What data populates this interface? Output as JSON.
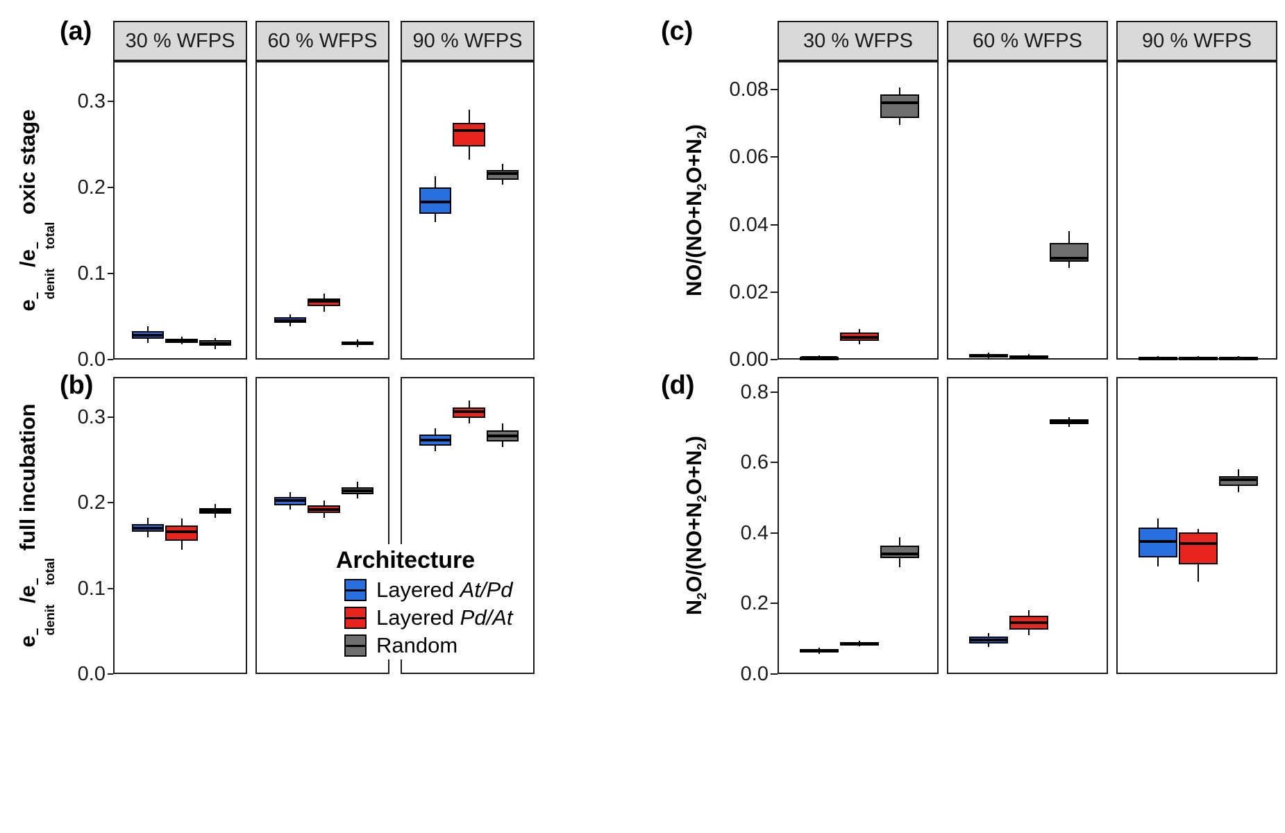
{
  "legend": {
    "title": "Architecture",
    "items": [
      {
        "label_prefix": "Layered ",
        "label_italic": "At/Pd",
        "series": "Layered At/Pd",
        "color": "#2a6fdf"
      },
      {
        "label_prefix": "Layered ",
        "label_italic": "Pd/At",
        "series": "Layered Pd/At",
        "color": "#e8251f"
      },
      {
        "label_prefix": "Random",
        "label_italic": "",
        "series": "Random",
        "color": "#6e6e6e"
      }
    ]
  },
  "chart_data": {
    "type": "boxplot",
    "grid": "off",
    "legend_position": "inside bottom-center of panel (b)",
    "series": [
      "Layered At/Pd",
      "Layered Pd/At",
      "Random"
    ],
    "series_colors": {
      "Layered At/Pd": "#2a6fdf",
      "Layered Pd/At": "#e8251f",
      "Random": "#6e6e6e"
    },
    "facet_titles": [
      "30 % WFPS",
      "60 % WFPS",
      "90 % WFPS"
    ],
    "panels": [
      {
        "id": "a",
        "label": "(a)",
        "group": "left",
        "row": "top",
        "show_strip": true,
        "ylabel_segments": [
          {
            "t": "e"
          },
          {
            "sup": "−",
            "sub": "denit"
          },
          {
            "t": "/e"
          },
          {
            "sup": "−",
            "sub": "total"
          },
          {
            "t": " oxic stage"
          }
        ],
        "ylim": [
          0,
          0.347
        ],
        "yticks": [
          {
            "v": 0.0,
            "label": "0.0"
          },
          {
            "v": 0.1,
            "label": "0.1"
          },
          {
            "v": 0.2,
            "label": "0.2"
          },
          {
            "v": 0.3,
            "label": "0.3"
          }
        ],
        "facets": [
          {
            "title": "30 % WFPS",
            "boxes": [
              {
                "series": "Layered At/Pd",
                "whisker_low": 0.021,
                "q1": 0.026,
                "median": 0.03,
                "q3": 0.035,
                "whisker_high": 0.04
              },
              {
                "series": "Layered Pd/At",
                "whisker_low": 0.019,
                "q1": 0.021,
                "median": 0.0235,
                "q3": 0.026,
                "whisker_high": 0.028
              },
              {
                "series": "Random",
                "whisker_low": 0.014,
                "q1": 0.0177,
                "median": 0.02,
                "q3": 0.0242,
                "whisker_high": 0.027
              }
            ]
          },
          {
            "title": "60 % WFPS",
            "boxes": [
              {
                "series": "Layered At/Pd",
                "whisker_low": 0.04,
                "q1": 0.044,
                "median": 0.047,
                "q3": 0.051,
                "whisker_high": 0.054
              },
              {
                "series": "Layered Pd/At",
                "whisker_low": 0.057,
                "q1": 0.064,
                "median": 0.069,
                "q3": 0.073,
                "whisker_high": 0.078
              },
              {
                "series": "Random",
                "whisker_low": 0.016,
                "q1": 0.0186,
                "median": 0.0205,
                "q3": 0.0226,
                "whisker_high": 0.025
              }
            ]
          },
          {
            "title": "90 % WFPS",
            "boxes": [
              {
                "series": "Layered At/Pd",
                "whisker_low": 0.161,
                "q1": 0.171,
                "median": 0.185,
                "q3": 0.202,
                "whisker_high": 0.215
              },
              {
                "series": "Layered Pd/At",
                "whisker_low": 0.234,
                "q1": 0.249,
                "median": 0.268,
                "q3": 0.277,
                "whisker_high": 0.292
              },
              {
                "series": "Random",
                "whisker_low": 0.205,
                "q1": 0.211,
                "median": 0.218,
                "q3": 0.222,
                "whisker_high": 0.229
              }
            ]
          }
        ]
      },
      {
        "id": "b",
        "label": "(b)",
        "group": "left",
        "row": "bottom",
        "show_strip": false,
        "ylabel_segments": [
          {
            "t": "e"
          },
          {
            "sup": "−",
            "sub": "denit"
          },
          {
            "t": "/e"
          },
          {
            "sup": "−",
            "sub": "total"
          },
          {
            "t": " full incubation"
          }
        ],
        "ylim": [
          0,
          0.347
        ],
        "yticks": [
          {
            "v": 0.0,
            "label": "0.0"
          },
          {
            "v": 0.1,
            "label": "0.1"
          },
          {
            "v": 0.2,
            "label": "0.2"
          },
          {
            "v": 0.3,
            "label": "0.3"
          }
        ],
        "facets": [
          {
            "boxes": [
              {
                "series": "Layered At/Pd",
                "whisker_low": 0.161,
                "q1": 0.168,
                "median": 0.172,
                "q3": 0.177,
                "whisker_high": 0.184
              },
              {
                "series": "Layered Pd/At",
                "whisker_low": 0.147,
                "q1": 0.157,
                "median": 0.168,
                "q3": 0.175,
                "whisker_high": 0.183
              },
              {
                "series": "Random",
                "whisker_low": 0.184,
                "q1": 0.189,
                "median": 0.192,
                "q3": 0.195,
                "whisker_high": 0.2
              }
            ]
          },
          {
            "boxes": [
              {
                "series": "Layered At/Pd",
                "whisker_low": 0.194,
                "q1": 0.199,
                "median": 0.204,
                "q3": 0.208,
                "whisker_high": 0.214
              },
              {
                "series": "Layered Pd/At",
                "whisker_low": 0.184,
                "q1": 0.19,
                "median": 0.194,
                "q3": 0.199,
                "whisker_high": 0.204
              },
              {
                "series": "Random",
                "whisker_low": 0.207,
                "q1": 0.212,
                "median": 0.216,
                "q3": 0.22,
                "whisker_high": 0.226
              }
            ]
          },
          {
            "boxes": [
              {
                "series": "Layered At/Pd",
                "whisker_low": 0.262,
                "q1": 0.268,
                "median": 0.275,
                "q3": 0.281,
                "whisker_high": 0.289
              },
              {
                "series": "Layered Pd/At",
                "whisker_low": 0.294,
                "q1": 0.301,
                "median": 0.308,
                "q3": 0.313,
                "whisker_high": 0.321
              },
              {
                "series": "Random",
                "whisker_low": 0.267,
                "q1": 0.273,
                "median": 0.28,
                "q3": 0.286,
                "whisker_high": 0.294
              }
            ]
          }
        ]
      },
      {
        "id": "c",
        "label": "(c)",
        "group": "right",
        "row": "top",
        "show_strip": true,
        "ylabel_segments": [
          {
            "t": "NO/(NO+N"
          },
          {
            "sub": "2"
          },
          {
            "t": "O+N"
          },
          {
            "sub": "2"
          },
          {
            "t": ")"
          }
        ],
        "ylim": [
          0,
          0.0885
        ],
        "yticks": [
          {
            "v": 0.0,
            "label": "0.00"
          },
          {
            "v": 0.02,
            "label": "0.02"
          },
          {
            "v": 0.04,
            "label": "0.04"
          },
          {
            "v": 0.06,
            "label": "0.06"
          },
          {
            "v": 0.08,
            "label": "0.08"
          }
        ],
        "facets": [
          {
            "title": "30 % WFPS",
            "boxes": [
              {
                "series": "Layered At/Pd",
                "whisker_low": 0.0005,
                "q1": 0.0008,
                "median": 0.001,
                "q3": 0.0013,
                "whisker_high": 0.0016
              },
              {
                "series": "Layered Pd/At",
                "whisker_low": 0.005,
                "q1": 0.006,
                "median": 0.007,
                "q3": 0.0085,
                "whisker_high": 0.0095
              },
              {
                "series": "Random",
                "whisker_low": 0.07,
                "q1": 0.072,
                "median": 0.0765,
                "q3": 0.079,
                "whisker_high": 0.081
              }
            ]
          },
          {
            "title": "60 % WFPS",
            "boxes": [
              {
                "series": "Layered At/Pd",
                "whisker_low": 0.0008,
                "q1": 0.0012,
                "median": 0.0016,
                "q3": 0.002,
                "whisker_high": 0.0024
              },
              {
                "series": "Layered Pd/At",
                "whisker_low": 0.0006,
                "q1": 0.0009,
                "median": 0.0013,
                "q3": 0.0017,
                "whisker_high": 0.002
              },
              {
                "series": "Random",
                "whisker_low": 0.0276,
                "q1": 0.0295,
                "median": 0.0305,
                "q3": 0.035,
                "whisker_high": 0.0385
              }
            ]
          },
          {
            "title": "90 % WFPS",
            "boxes": [
              {
                "series": "Layered At/Pd",
                "whisker_low": 0.0004,
                "q1": 0.0006,
                "median": 0.0009,
                "q3": 0.0012,
                "whisker_high": 0.0015
              },
              {
                "series": "Layered Pd/At",
                "whisker_low": 0.0004,
                "q1": 0.0006,
                "median": 0.0009,
                "q3": 0.0012,
                "whisker_high": 0.0015
              },
              {
                "series": "Random",
                "whisker_low": 0.0004,
                "q1": 0.0006,
                "median": 0.0009,
                "q3": 0.0012,
                "whisker_high": 0.0015
              }
            ]
          }
        ]
      },
      {
        "id": "d",
        "label": "(d)",
        "group": "right",
        "row": "bottom",
        "show_strip": false,
        "ylabel_segments": [
          {
            "t": "N"
          },
          {
            "sub": "2"
          },
          {
            "t": "O/(NO+N"
          },
          {
            "sub": "2"
          },
          {
            "t": "O+N"
          },
          {
            "sub": "2"
          },
          {
            "t": ")"
          }
        ],
        "ylim": [
          0,
          0.843
        ],
        "yticks": [
          {
            "v": 0.0,
            "label": "0.0"
          },
          {
            "v": 0.2,
            "label": "0.2"
          },
          {
            "v": 0.4,
            "label": "0.4"
          },
          {
            "v": 0.6,
            "label": "0.6"
          },
          {
            "v": 0.8,
            "label": "0.8"
          }
        ],
        "facets": [
          {
            "boxes": [
              {
                "series": "Layered At/Pd",
                "whisker_low": 0.062,
                "q1": 0.066,
                "median": 0.07,
                "q3": 0.074,
                "whisker_high": 0.078
              },
              {
                "series": "Layered Pd/At",
                "whisker_low": 0.082,
                "q1": 0.086,
                "median": 0.09,
                "q3": 0.094,
                "whisker_high": 0.098
              },
              {
                "series": "Random",
                "whisker_low": 0.308,
                "q1": 0.332,
                "median": 0.345,
                "q3": 0.368,
                "whisker_high": 0.392
              }
            ]
          },
          {
            "boxes": [
              {
                "series": "Layered At/Pd",
                "whisker_low": 0.08,
                "q1": 0.09,
                "median": 0.1,
                "q3": 0.11,
                "whisker_high": 0.12
              },
              {
                "series": "Layered Pd/At",
                "whisker_low": 0.115,
                "q1": 0.13,
                "median": 0.15,
                "q3": 0.17,
                "whisker_high": 0.185
              },
              {
                "series": "Random",
                "whisker_low": 0.705,
                "q1": 0.712,
                "median": 0.719,
                "q3": 0.726,
                "whisker_high": 0.732
              }
            ]
          },
          {
            "boxes": [
              {
                "series": "Layered At/Pd",
                "whisker_low": 0.31,
                "q1": 0.335,
                "median": 0.38,
                "q3": 0.42,
                "whisker_high": 0.445
              },
              {
                "series": "Layered Pd/At",
                "whisker_low": 0.265,
                "q1": 0.315,
                "median": 0.375,
                "q3": 0.405,
                "whisker_high": 0.415
              },
              {
                "series": "Random",
                "whisker_low": 0.52,
                "q1": 0.538,
                "median": 0.555,
                "q3": 0.565,
                "whisker_high": 0.585
              }
            ]
          }
        ]
      }
    ]
  }
}
